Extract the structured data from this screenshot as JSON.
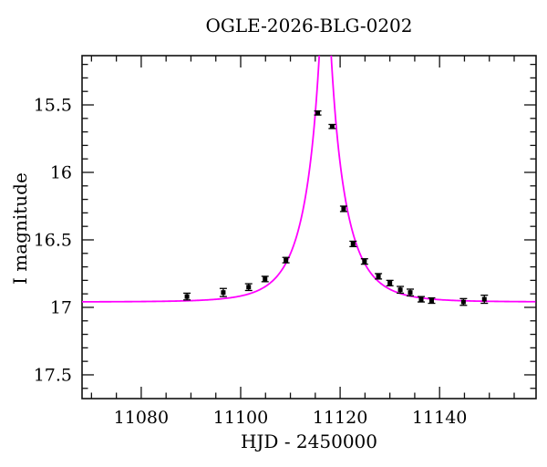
{
  "figure": {
    "background": "#ffffff"
  },
  "chart_data": {
    "type": "scatter",
    "title": "OGLE-2026-BLG-0202",
    "xlabel": "HJD - 2450000",
    "ylabel": "I magnitude",
    "x_axis": {
      "min": 11068.1,
      "max": 11159.4,
      "major_ticks": [
        11080,
        11100,
        11120,
        11140
      ],
      "tick_labels": [
        "11080",
        "11100",
        "11120",
        "11140"
      ],
      "minor_step": 5
    },
    "y_axis": {
      "min": 15.135,
      "max": 17.676,
      "inverted": true,
      "major_ticks": [
        15.5,
        16.0,
        16.5,
        17.0,
        17.5
      ],
      "tick_labels": [
        "15.5",
        "16",
        "16.5",
        "17",
        "17.5"
      ],
      "minor_step": 0.1
    },
    "points": [
      {
        "t": 11089.2,
        "mag": 16.92,
        "err": 0.025
      },
      {
        "t": 11096.5,
        "mag": 16.89,
        "err": 0.03
      },
      {
        "t": 11101.6,
        "mag": 16.85,
        "err": 0.025
      },
      {
        "t": 11104.9,
        "mag": 16.79,
        "err": 0.02
      },
      {
        "t": 11109.1,
        "mag": 16.65,
        "err": 0.02
      },
      {
        "t": 11115.5,
        "mag": 15.56,
        "err": 0.015
      },
      {
        "t": 11118.4,
        "mag": 15.66,
        "err": 0.015
      },
      {
        "t": 11120.7,
        "mag": 16.27,
        "err": 0.02
      },
      {
        "t": 11122.6,
        "mag": 16.53,
        "err": 0.02
      },
      {
        "t": 11124.9,
        "mag": 16.66,
        "err": 0.02
      },
      {
        "t": 11127.7,
        "mag": 16.77,
        "err": 0.02
      },
      {
        "t": 11130.0,
        "mag": 16.82,
        "err": 0.02
      },
      {
        "t": 11132.1,
        "mag": 16.87,
        "err": 0.025
      },
      {
        "t": 11134.1,
        "mag": 16.89,
        "err": 0.025
      },
      {
        "t": 11136.3,
        "mag": 16.94,
        "err": 0.02
      },
      {
        "t": 11138.4,
        "mag": 16.95,
        "err": 0.02
      },
      {
        "t": 11144.8,
        "mag": 16.96,
        "err": 0.025
      },
      {
        "t": 11149.0,
        "mag": 16.94,
        "err": 0.03
      }
    ],
    "model_curve": {
      "type": "paczynski",
      "t0": 11117.0,
      "tE": 7.5,
      "u0": 0.1,
      "I0": 16.96,
      "color": "#ff00ff"
    },
    "marker": {
      "shape": "square",
      "size": 5,
      "color": "#000000"
    },
    "frame_color": "#111111"
  }
}
